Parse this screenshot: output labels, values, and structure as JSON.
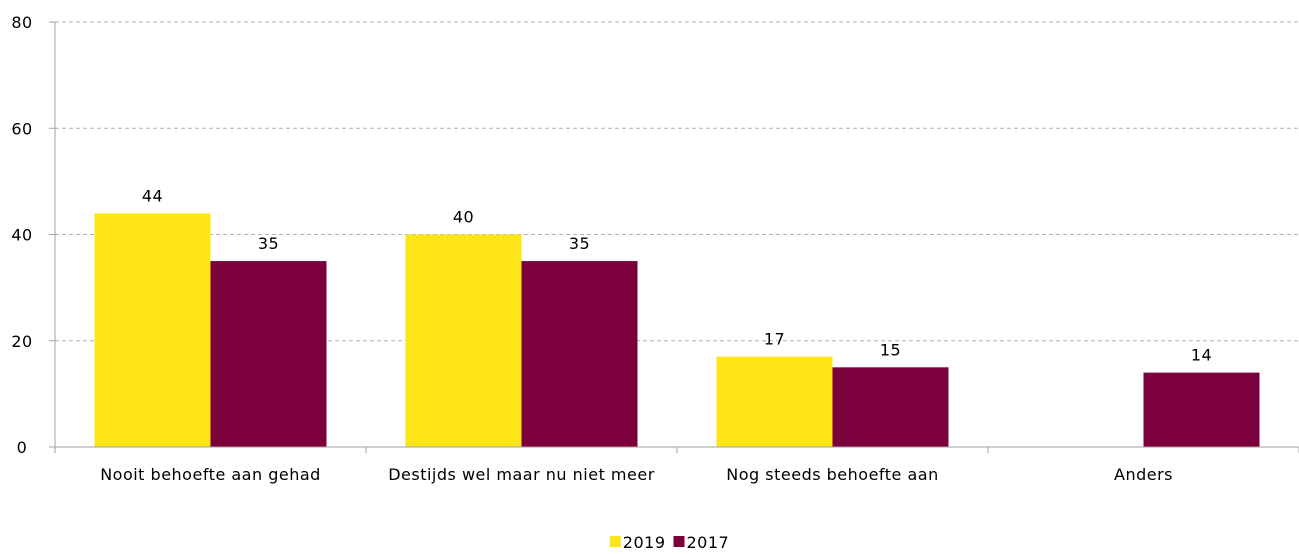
{
  "chart_data": {
    "type": "bar",
    "categories": [
      "Nooit behoefte aan gehad",
      "Destijds wel maar nu niet meer",
      "Nog steeds behoefte aan",
      "Anders"
    ],
    "series": [
      {
        "name": "2019",
        "color": "#fde517",
        "values": [
          44,
          40,
          17,
          null
        ]
      },
      {
        "name": "2017",
        "color": "#7b003c",
        "values": [
          35,
          35,
          15,
          14
        ]
      }
    ],
    "ylim": [
      0,
      80
    ],
    "yticks": [
      0,
      20,
      40,
      60,
      80
    ],
    "grid": true,
    "legend": "bottom"
  }
}
